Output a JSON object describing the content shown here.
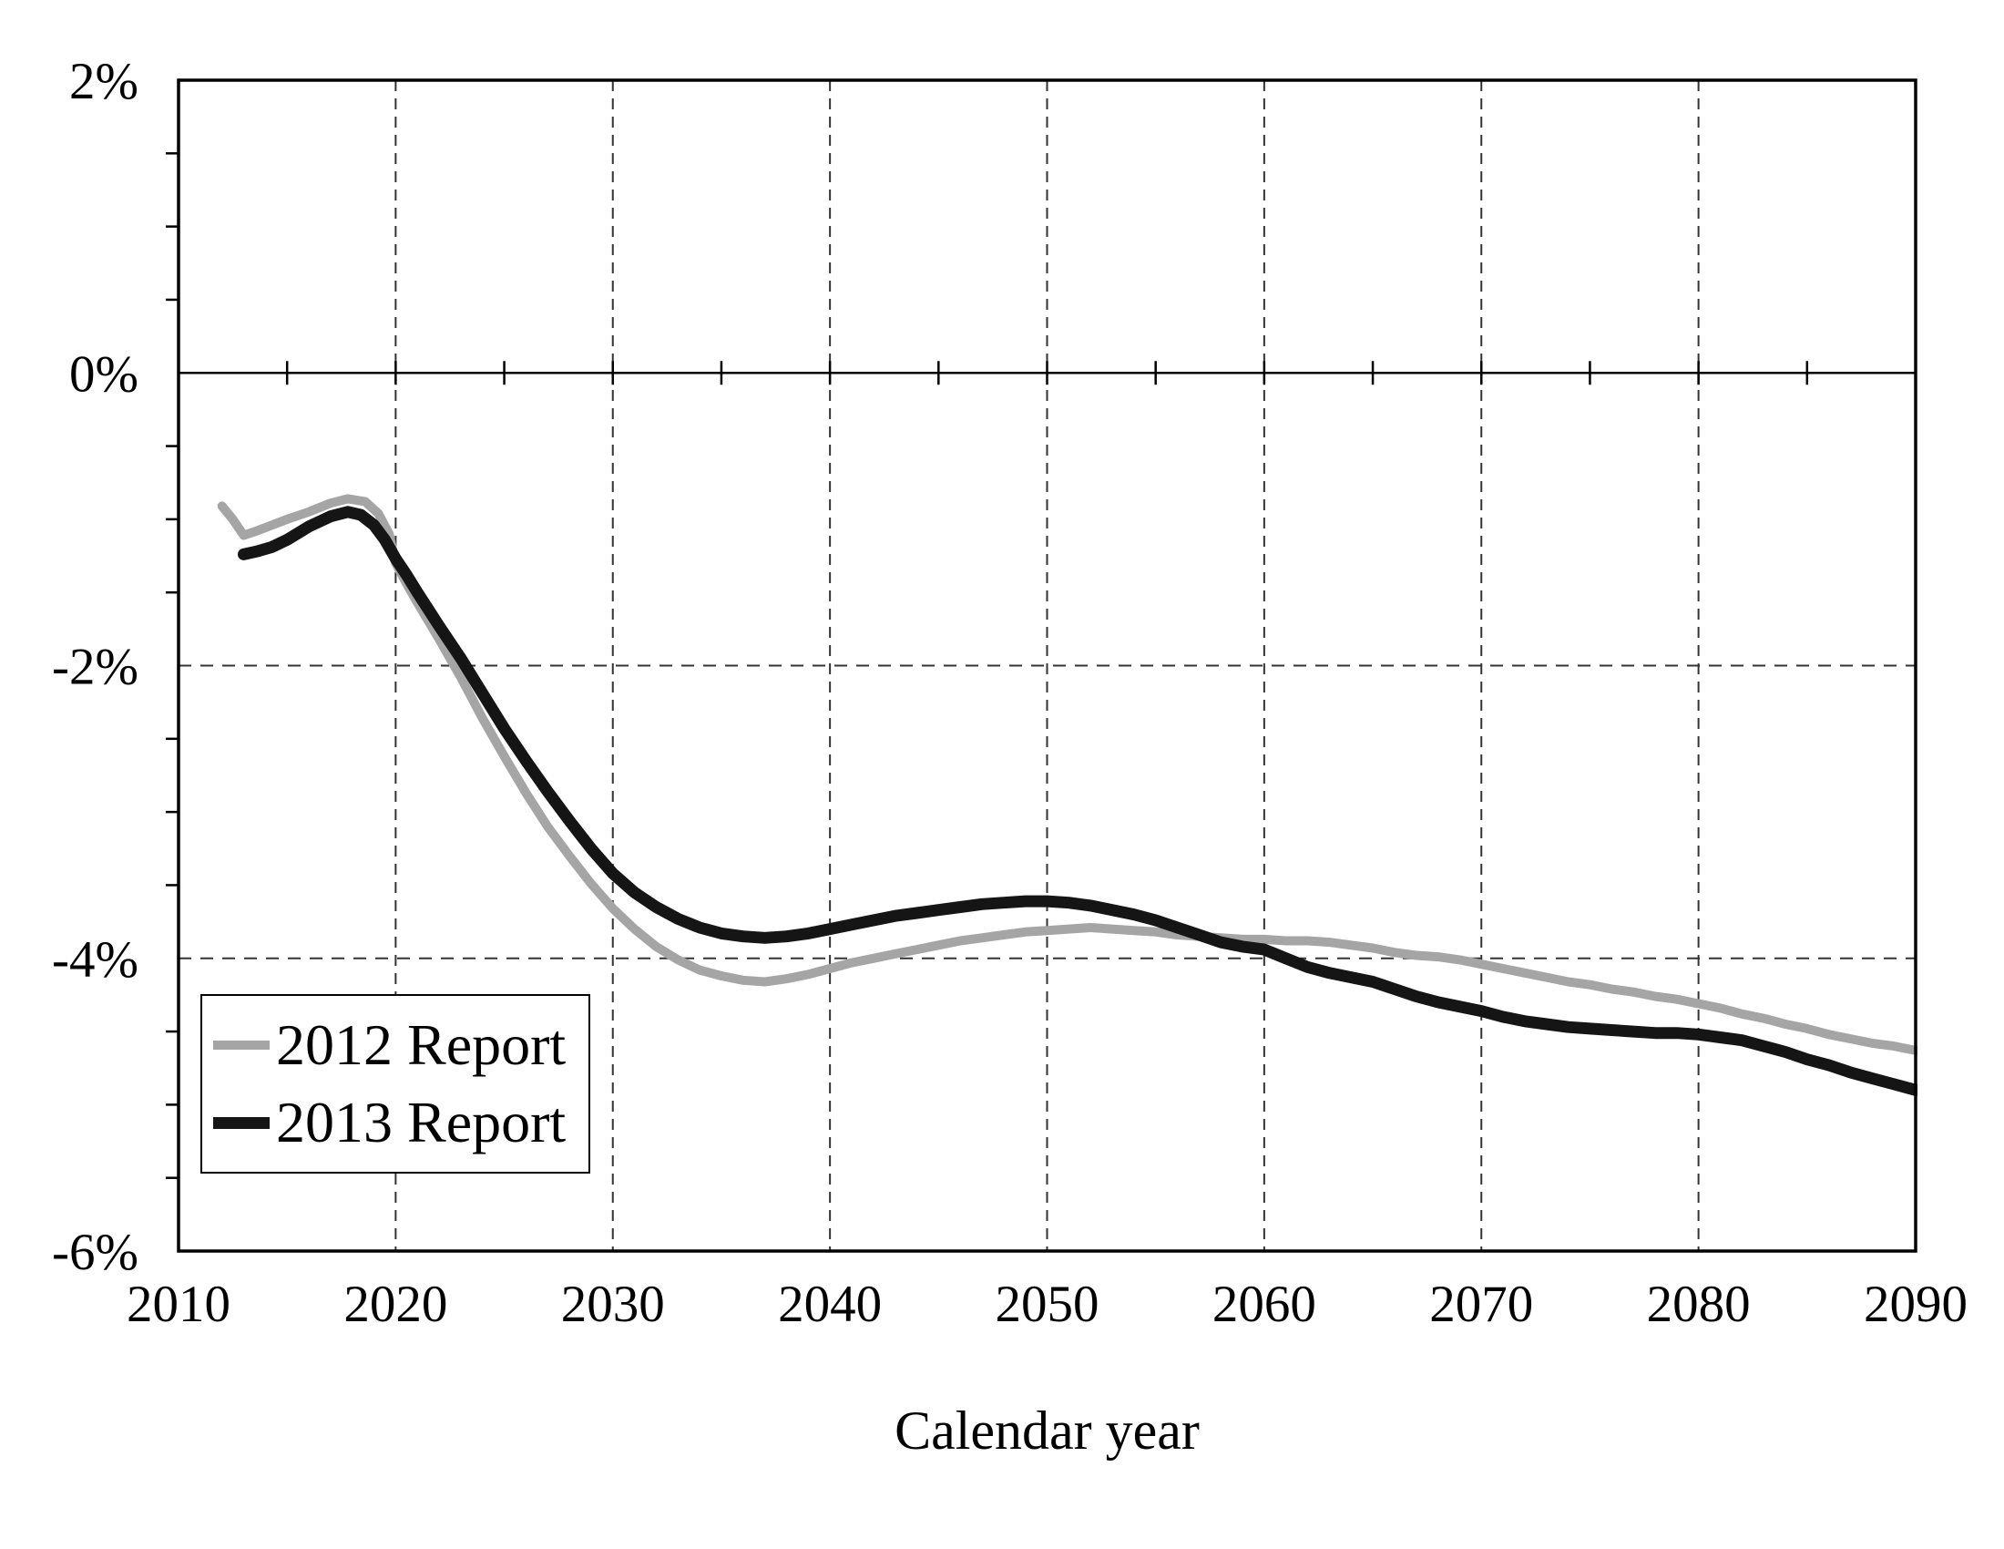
{
  "figure": {
    "background_color": "#ffffff",
    "axis_color": "#000000",
    "gridline_color": "#333333"
  },
  "legend": {
    "position": "lower-left",
    "items": [
      {
        "label": "2012 Report",
        "color": "#a5a5a5"
      },
      {
        "label": "2013 Report",
        "color": "#151515"
      }
    ]
  },
  "chart_data": {
    "type": "line",
    "title": "",
    "xlabel": "Calendar year",
    "ylabel": "",
    "xlim": [
      2010,
      2090
    ],
    "ylim": [
      -6,
      2
    ],
    "grid": "dashed major gridlines; solid line at 0%",
    "legend_position": "lower-left inside plot",
    "x_ticks": [
      {
        "year": 2010,
        "label": "2010"
      },
      {
        "year": 2020,
        "label": "2020"
      },
      {
        "year": 2030,
        "label": "2030"
      },
      {
        "year": 2040,
        "label": "2040"
      },
      {
        "year": 2050,
        "label": "2050"
      },
      {
        "year": 2060,
        "label": "2060"
      },
      {
        "year": 2070,
        "label": "2070"
      },
      {
        "year": 2080,
        "label": "2080"
      },
      {
        "year": 2090,
        "label": "2090"
      }
    ],
    "y_ticks": [
      {
        "value": 2,
        "label": "2%"
      },
      {
        "value": 0,
        "label": "0%"
      },
      {
        "value": -2,
        "label": "-2%"
      },
      {
        "value": -4,
        "label": "-4%"
      },
      {
        "value": -6,
        "label": "-6%"
      }
    ],
    "x_gridlines_dashed": [
      2020,
      2030,
      2040,
      2050,
      2060,
      2070,
      2080
    ],
    "y_gridlines_dashed": [
      -2,
      -4
    ],
    "y_zero_line": 0,
    "x_minor_ticks_on_zero_line": [
      2015,
      2020,
      2025,
      2030,
      2035,
      2040,
      2045,
      2050,
      2055,
      2060,
      2065,
      2070,
      2075,
      2080,
      2085
    ],
    "y_minor_ticks": [
      1.5,
      1.0,
      0.5,
      -0.5,
      -1.0,
      -1.5,
      -2.5,
      -3.0,
      -3.5,
      -4.5,
      -5.0,
      -5.5
    ],
    "series": [
      {
        "name": "2012 Report",
        "color": "#a5a5a5",
        "width": 10,
        "points": [
          [
            2012,
            -0.91
          ],
          [
            2012.5,
            -1.0
          ],
          [
            2013,
            -1.11
          ],
          [
            2013.6,
            -1.08
          ],
          [
            2014.3,
            -1.04
          ],
          [
            2015,
            -1.0
          ],
          [
            2016,
            -0.95
          ],
          [
            2017,
            -0.89
          ],
          [
            2017.8,
            -0.86
          ],
          [
            2018.6,
            -0.88
          ],
          [
            2019.2,
            -0.96
          ],
          [
            2019.7,
            -1.1
          ],
          [
            2020,
            -1.3
          ],
          [
            2020.5,
            -1.44
          ],
          [
            2021,
            -1.57
          ],
          [
            2022,
            -1.82
          ],
          [
            2023,
            -2.08
          ],
          [
            2024,
            -2.36
          ],
          [
            2025,
            -2.62
          ],
          [
            2026,
            -2.87
          ],
          [
            2027,
            -3.1
          ],
          [
            2028,
            -3.3
          ],
          [
            2029,
            -3.49
          ],
          [
            2030,
            -3.66
          ],
          [
            2031,
            -3.8
          ],
          [
            2032,
            -3.92
          ],
          [
            2033,
            -4.01
          ],
          [
            2034,
            -4.08
          ],
          [
            2035,
            -4.12
          ],
          [
            2036,
            -4.15
          ],
          [
            2037,
            -4.16
          ],
          [
            2038,
            -4.14
          ],
          [
            2039,
            -4.11
          ],
          [
            2040,
            -4.07
          ],
          [
            2041,
            -4.03
          ],
          [
            2042,
            -4.0
          ],
          [
            2043,
            -3.97
          ],
          [
            2044,
            -3.94
          ],
          [
            2045,
            -3.91
          ],
          [
            2046,
            -3.88
          ],
          [
            2047,
            -3.86
          ],
          [
            2048,
            -3.84
          ],
          [
            2049,
            -3.82
          ],
          [
            2050,
            -3.81
          ],
          [
            2051,
            -3.8
          ],
          [
            2052,
            -3.79
          ],
          [
            2053,
            -3.8
          ],
          [
            2054,
            -3.81
          ],
          [
            2055,
            -3.82
          ],
          [
            2056,
            -3.84
          ],
          [
            2057,
            -3.85
          ],
          [
            2058,
            -3.86
          ],
          [
            2059,
            -3.87
          ],
          [
            2060,
            -3.87
          ],
          [
            2061,
            -3.88
          ],
          [
            2062,
            -3.88
          ],
          [
            2063,
            -3.89
          ],
          [
            2064,
            -3.91
          ],
          [
            2065,
            -3.93
          ],
          [
            2066,
            -3.96
          ],
          [
            2067,
            -3.98
          ],
          [
            2068,
            -3.99
          ],
          [
            2069,
            -4.01
          ],
          [
            2070,
            -4.04
          ],
          [
            2071,
            -4.07
          ],
          [
            2072,
            -4.1
          ],
          [
            2073,
            -4.13
          ],
          [
            2074,
            -4.16
          ],
          [
            2075,
            -4.18
          ],
          [
            2076,
            -4.21
          ],
          [
            2077,
            -4.23
          ],
          [
            2078,
            -4.26
          ],
          [
            2079,
            -4.28
          ],
          [
            2080,
            -4.31
          ],
          [
            2081,
            -4.34
          ],
          [
            2082,
            -4.38
          ],
          [
            2083,
            -4.41
          ],
          [
            2084,
            -4.45
          ],
          [
            2085,
            -4.48
          ],
          [
            2086,
            -4.52
          ],
          [
            2087,
            -4.55
          ],
          [
            2088,
            -4.58
          ],
          [
            2089,
            -4.6
          ],
          [
            2090,
            -4.63
          ]
        ]
      },
      {
        "name": "2013 Report",
        "color": "#151515",
        "width": 13,
        "points": [
          [
            2013,
            -1.24
          ],
          [
            2013.6,
            -1.22
          ],
          [
            2014.3,
            -1.19
          ],
          [
            2015,
            -1.14
          ],
          [
            2016,
            -1.05
          ],
          [
            2017,
            -0.98
          ],
          [
            2017.8,
            -0.95
          ],
          [
            2018.4,
            -0.97
          ],
          [
            2019,
            -1.04
          ],
          [
            2019.5,
            -1.14
          ],
          [
            2020,
            -1.27
          ],
          [
            2020.5,
            -1.38
          ],
          [
            2021,
            -1.5
          ],
          [
            2022,
            -1.73
          ],
          [
            2023,
            -1.95
          ],
          [
            2024,
            -2.19
          ],
          [
            2025,
            -2.43
          ],
          [
            2026,
            -2.65
          ],
          [
            2027,
            -2.86
          ],
          [
            2028,
            -3.06
          ],
          [
            2029,
            -3.25
          ],
          [
            2030,
            -3.42
          ],
          [
            2031,
            -3.55
          ],
          [
            2032,
            -3.65
          ],
          [
            2033,
            -3.73
          ],
          [
            2034,
            -3.79
          ],
          [
            2035,
            -3.83
          ],
          [
            2036,
            -3.85
          ],
          [
            2037,
            -3.86
          ],
          [
            2038,
            -3.85
          ],
          [
            2039,
            -3.83
          ],
          [
            2040,
            -3.8
          ],
          [
            2041,
            -3.77
          ],
          [
            2042,
            -3.74
          ],
          [
            2043,
            -3.71
          ],
          [
            2044,
            -3.69
          ],
          [
            2045,
            -3.67
          ],
          [
            2046,
            -3.65
          ],
          [
            2047,
            -3.63
          ],
          [
            2048,
            -3.62
          ],
          [
            2049,
            -3.61
          ],
          [
            2050,
            -3.61
          ],
          [
            2051,
            -3.62
          ],
          [
            2052,
            -3.64
          ],
          [
            2053,
            -3.67
          ],
          [
            2054,
            -3.7
          ],
          [
            2055,
            -3.74
          ],
          [
            2056,
            -3.79
          ],
          [
            2057,
            -3.84
          ],
          [
            2058,
            -3.89
          ],
          [
            2059,
            -3.92
          ],
          [
            2060,
            -3.94
          ],
          [
            2061,
            -4.0
          ],
          [
            2062,
            -4.06
          ],
          [
            2063,
            -4.1
          ],
          [
            2064,
            -4.13
          ],
          [
            2065,
            -4.16
          ],
          [
            2066,
            -4.21
          ],
          [
            2067,
            -4.26
          ],
          [
            2068,
            -4.3
          ],
          [
            2069,
            -4.33
          ],
          [
            2070,
            -4.36
          ],
          [
            2071,
            -4.4
          ],
          [
            2072,
            -4.43
          ],
          [
            2073,
            -4.45
          ],
          [
            2074,
            -4.47
          ],
          [
            2075,
            -4.48
          ],
          [
            2076,
            -4.49
          ],
          [
            2077,
            -4.5
          ],
          [
            2078,
            -4.51
          ],
          [
            2079,
            -4.51
          ],
          [
            2080,
            -4.52
          ],
          [
            2081,
            -4.54
          ],
          [
            2082,
            -4.56
          ],
          [
            2083,
            -4.6
          ],
          [
            2084,
            -4.64
          ],
          [
            2085,
            -4.69
          ],
          [
            2086,
            -4.73
          ],
          [
            2087,
            -4.78
          ],
          [
            2088,
            -4.82
          ],
          [
            2089,
            -4.86
          ],
          [
            2090,
            -4.9
          ]
        ]
      }
    ]
  }
}
